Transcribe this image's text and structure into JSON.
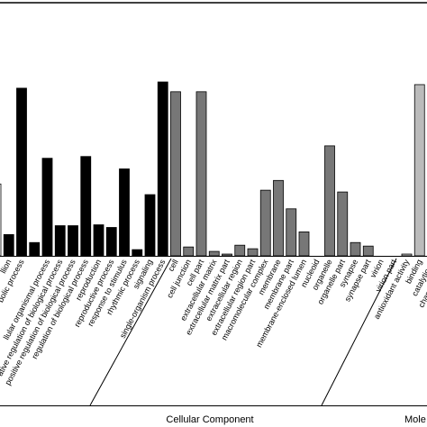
{
  "chart_data": {
    "type": "bar",
    "groups": [
      {
        "color": "#000000",
        "categories": [
          null,
          "llion",
          "bolic process",
          null,
          "llular organismal process",
          "ative regulation of biological process",
          "positive regulation of biological process",
          "regulation of biological process",
          "reproduction",
          "reproductive process",
          "response to stimulus",
          "rhythmic process",
          "signaling",
          "single-organism process"
        ],
        "values": [
          81,
          24,
          189,
          15,
          110,
          34,
          34,
          112,
          35,
          32,
          98,
          7,
          69,
          196
        ]
      },
      {
        "name": "Cellular Component",
        "color": "#777777",
        "categories": [
          "cell",
          "cell junction",
          "cell part",
          "extracellular matrix",
          "extracellular matrix part",
          "extracellular region",
          "extracellular region part",
          "macromolecular complex",
          "membrane",
          "membrane part",
          "membrane-enclosed lumen",
          "nucleoid",
          "organelle",
          "organelle part",
          "synapse",
          "synapse part",
          "virion",
          "virion part"
        ],
        "values": [
          185,
          10,
          185,
          5,
          2,
          12,
          8,
          74,
          85,
          53,
          27,
          0,
          124,
          72,
          15,
          11,
          0,
          0
        ]
      },
      {
        "name": "Mole",
        "color": "#bbbbbb",
        "categories": [
          "antioxidant activity",
          "binding",
          "catalytic ac",
          "channel regula"
        ],
        "values": [
          2,
          193,
          null,
          null
        ]
      }
    ]
  }
}
